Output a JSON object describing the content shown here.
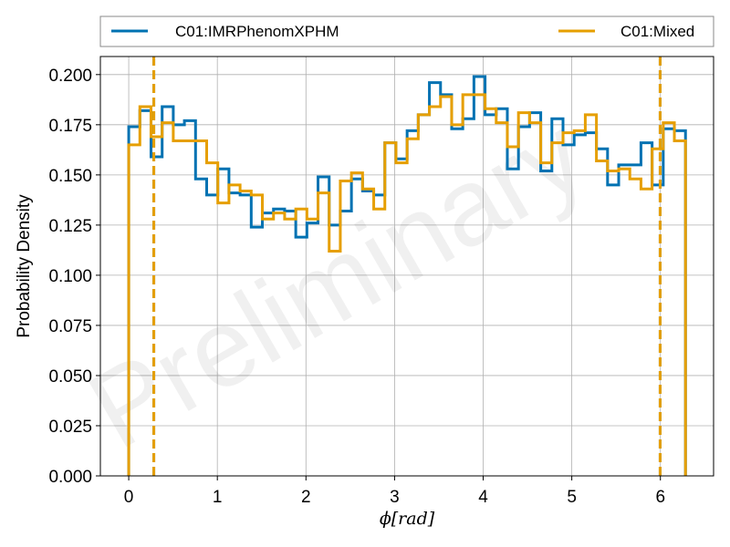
{
  "chart_data": {
    "type": "histogram-step",
    "xlabel": "ϕ[rad]",
    "ylabel": "Probability Density",
    "watermark": "Preliminary",
    "xlim": [
      -0.32,
      6.6
    ],
    "ylim": [
      0,
      0.209
    ],
    "xticks": [
      0,
      1,
      2,
      3,
      4,
      5,
      6
    ],
    "yticks": [
      0.0,
      0.025,
      0.05,
      0.075,
      0.1,
      0.125,
      0.15,
      0.175,
      0.2
    ],
    "ytick_labels": [
      "0.000",
      "0.025",
      "0.050",
      "0.075",
      "0.100",
      "0.125",
      "0.150",
      "0.175",
      "0.200"
    ],
    "grid": true,
    "legend_placement": "top, outside plot",
    "bins": {
      "start": 0.0,
      "end": 6.2832,
      "count": 50
    },
    "series": [
      {
        "name": "C01:IMRPhenomXPHM",
        "color": "#0072b2",
        "values": [
          0.174,
          0.182,
          0.159,
          0.184,
          0.175,
          0.177,
          0.148,
          0.14,
          0.153,
          0.141,
          0.14,
          0.124,
          0.131,
          0.133,
          0.132,
          0.119,
          0.126,
          0.149,
          0.125,
          0.132,
          0.148,
          0.142,
          0.14,
          0.166,
          0.158,
          0.172,
          0.18,
          0.196,
          0.19,
          0.173,
          0.178,
          0.199,
          0.18,
          0.183,
          0.153,
          0.174,
          0.181,
          0.152,
          0.178,
          0.165,
          0.17,
          0.171,
          0.163,
          0.145,
          0.155,
          0.155,
          0.166,
          0.145,
          0.173,
          0.172
        ],
        "quantiles": [
          0.283,
          5.997
        ]
      },
      {
        "name": "C01:Mixed",
        "color": "#e69f00",
        "values": [
          0.165,
          0.184,
          0.169,
          0.176,
          0.167,
          0.167,
          0.167,
          0.156,
          0.136,
          0.145,
          0.142,
          0.14,
          0.128,
          0.131,
          0.128,
          0.133,
          0.128,
          0.141,
          0.112,
          0.147,
          0.151,
          0.143,
          0.133,
          0.166,
          0.156,
          0.168,
          0.18,
          0.184,
          0.189,
          0.175,
          0.19,
          0.19,
          0.183,
          0.176,
          0.164,
          0.181,
          0.176,
          0.156,
          0.166,
          0.171,
          0.172,
          0.18,
          0.157,
          0.152,
          0.153,
          0.148,
          0.143,
          0.163,
          0.176,
          0.167
        ],
        "quantiles": [
          0.283,
          5.997
        ]
      }
    ]
  }
}
